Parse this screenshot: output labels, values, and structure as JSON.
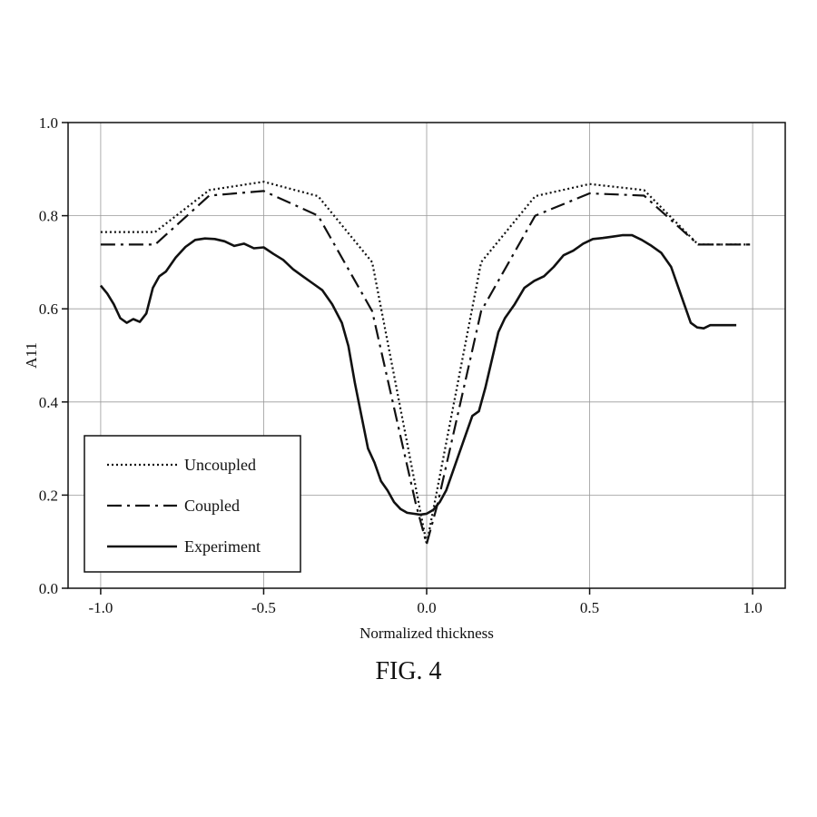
{
  "caption": "FIG. 4",
  "chart_data": {
    "type": "line",
    "xlabel": "Normalized thickness",
    "ylabel": "A11",
    "xlim": [
      -1.1,
      1.1
    ],
    "ylim": [
      0.0,
      1.0
    ],
    "xticks": [
      -1.0,
      -0.5,
      0.0,
      0.5,
      1.0
    ],
    "xtick_labels": [
      "-1.0",
      "-0.5",
      "0.0",
      "0.5",
      "1.0"
    ],
    "yticks": [
      0.0,
      0.2,
      0.4,
      0.6,
      0.8,
      1.0
    ],
    "ytick_labels": [
      "0.0",
      "0.2",
      "0.4",
      "0.6",
      "0.8",
      "1.0"
    ],
    "grid": true,
    "legend_position": "bottom-left",
    "series": [
      {
        "name": "Uncoupled",
        "style": "dotted",
        "color": "#111111",
        "x": [
          -1.0,
          -0.833,
          -0.667,
          -0.5,
          -0.333,
          -0.167,
          0.0,
          0.167,
          0.333,
          0.5,
          0.667,
          0.833,
          1.0
        ],
        "y": [
          0.765,
          0.765,
          0.855,
          0.873,
          0.842,
          0.7,
          0.095,
          0.7,
          0.842,
          0.868,
          0.855,
          0.738,
          0.738
        ]
      },
      {
        "name": "Coupled",
        "style": "dash-dot",
        "color": "#111111",
        "x": [
          -1.0,
          -0.833,
          -0.667,
          -0.5,
          -0.333,
          -0.167,
          -0.033,
          0.0,
          0.033,
          0.167,
          0.333,
          0.5,
          0.667,
          0.833,
          1.0
        ],
        "y": [
          0.738,
          0.738,
          0.843,
          0.853,
          0.8,
          0.595,
          0.18,
          0.095,
          0.18,
          0.595,
          0.8,
          0.848,
          0.843,
          0.738,
          0.738
        ]
      },
      {
        "name": "Experiment",
        "style": "solid",
        "color": "#111111",
        "x": [
          -1.0,
          -0.98,
          -0.96,
          -0.94,
          -0.92,
          -0.9,
          -0.88,
          -0.86,
          -0.84,
          -0.82,
          -0.8,
          -0.77,
          -0.74,
          -0.71,
          -0.68,
          -0.65,
          -0.62,
          -0.59,
          -0.56,
          -0.53,
          -0.5,
          -0.47,
          -0.44,
          -0.41,
          -0.38,
          -0.35,
          -0.32,
          -0.29,
          -0.26,
          -0.24,
          -0.22,
          -0.2,
          -0.18,
          -0.16,
          -0.14,
          -0.12,
          -0.1,
          -0.08,
          -0.06,
          -0.04,
          -0.02,
          0.0,
          0.02,
          0.04,
          0.06,
          0.08,
          0.1,
          0.12,
          0.14,
          0.16,
          0.18,
          0.2,
          0.22,
          0.24,
          0.27,
          0.3,
          0.33,
          0.36,
          0.39,
          0.42,
          0.45,
          0.48,
          0.51,
          0.54,
          0.57,
          0.6,
          0.63,
          0.66,
          0.69,
          0.72,
          0.75,
          0.78,
          0.81,
          0.83,
          0.85,
          0.87,
          0.89,
          0.91,
          0.93,
          0.95
        ],
        "y": [
          0.65,
          0.633,
          0.61,
          0.58,
          0.57,
          0.578,
          0.572,
          0.59,
          0.645,
          0.67,
          0.68,
          0.71,
          0.733,
          0.748,
          0.751,
          0.75,
          0.745,
          0.735,
          0.74,
          0.73,
          0.732,
          0.718,
          0.705,
          0.685,
          0.67,
          0.655,
          0.64,
          0.61,
          0.57,
          0.52,
          0.44,
          0.37,
          0.3,
          0.27,
          0.23,
          0.21,
          0.185,
          0.17,
          0.162,
          0.16,
          0.158,
          0.16,
          0.168,
          0.185,
          0.21,
          0.25,
          0.29,
          0.33,
          0.37,
          0.38,
          0.43,
          0.49,
          0.55,
          0.58,
          0.61,
          0.645,
          0.66,
          0.67,
          0.69,
          0.715,
          0.725,
          0.74,
          0.75,
          0.752,
          0.755,
          0.758,
          0.758,
          0.748,
          0.735,
          0.72,
          0.69,
          0.63,
          0.57,
          0.56,
          0.558,
          0.565,
          0.565,
          0.565,
          0.565,
          0.565
        ]
      }
    ]
  }
}
